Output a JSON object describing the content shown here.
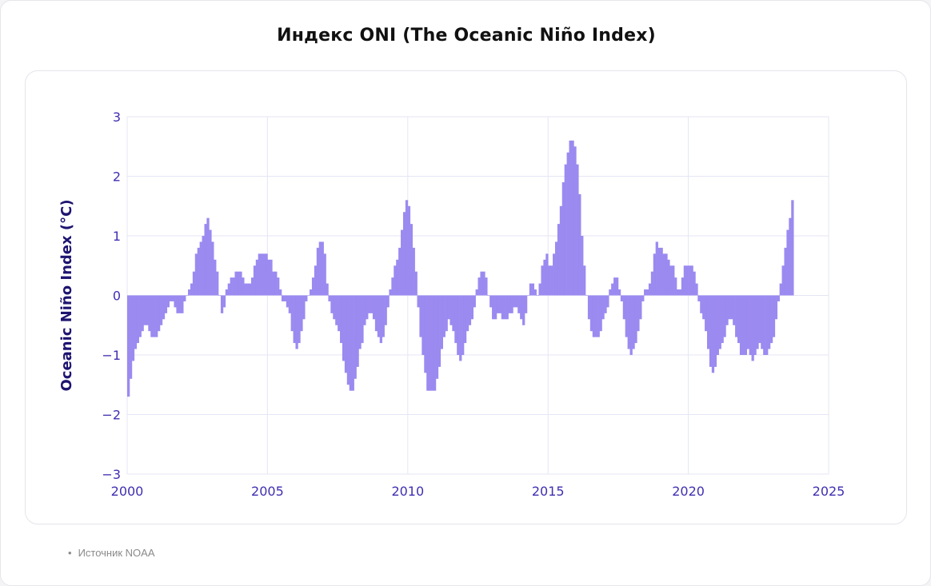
{
  "title": "Индекс ONI (The Oceanic Niño Index)",
  "source_bullet": "•",
  "source": "Источник NOAA",
  "colors": {
    "bar": "#9b8af0",
    "axis_text": "#3f2fb2",
    "ylabel": "#1e1470",
    "grid": "#e5e6f5"
  },
  "chart_data": {
    "type": "bar",
    "ylabel": "Oceanic Niño Index (°C)",
    "xlim": [
      2000,
      2025
    ],
    "ylim": [
      -3,
      3
    ],
    "xticks": [
      2000,
      2005,
      2010,
      2015,
      2020,
      2025
    ],
    "yticks": [
      -3,
      -2,
      -1,
      0,
      1,
      2,
      3
    ],
    "grid": true,
    "start": "2000-01",
    "interval": "monthly",
    "values": [
      -1.7,
      -1.4,
      -1.1,
      -0.9,
      -0.8,
      -0.7,
      -0.6,
      -0.5,
      -0.5,
      -0.6,
      -0.7,
      -0.7,
      -0.7,
      -0.6,
      -0.5,
      -0.4,
      -0.3,
      -0.2,
      -0.1,
      -0.1,
      -0.2,
      -0.3,
      -0.3,
      -0.3,
      -0.1,
      0.0,
      0.1,
      0.2,
      0.4,
      0.7,
      0.8,
      0.9,
      1.0,
      1.2,
      1.3,
      1.1,
      0.9,
      0.6,
      0.4,
      0.0,
      -0.3,
      -0.2,
      0.1,
      0.2,
      0.3,
      0.3,
      0.4,
      0.4,
      0.4,
      0.3,
      0.2,
      0.2,
      0.2,
      0.3,
      0.5,
      0.6,
      0.7,
      0.7,
      0.7,
      0.7,
      0.6,
      0.6,
      0.4,
      0.4,
      0.3,
      0.1,
      -0.1,
      -0.1,
      -0.2,
      -0.3,
      -0.6,
      -0.8,
      -0.9,
      -0.8,
      -0.6,
      -0.4,
      -0.1,
      0.0,
      0.1,
      0.3,
      0.5,
      0.8,
      0.9,
      0.9,
      0.7,
      0.2,
      -0.1,
      -0.3,
      -0.4,
      -0.5,
      -0.6,
      -0.8,
      -1.1,
      -1.3,
      -1.5,
      -1.6,
      -1.6,
      -1.4,
      -1.2,
      -0.9,
      -0.8,
      -0.5,
      -0.4,
      -0.3,
      -0.3,
      -0.4,
      -0.6,
      -0.7,
      -0.8,
      -0.7,
      -0.5,
      -0.2,
      0.1,
      0.3,
      0.5,
      0.6,
      0.8,
      1.1,
      1.4,
      1.6,
      1.5,
      1.2,
      0.8,
      0.4,
      -0.2,
      -0.7,
      -1.0,
      -1.3,
      -1.6,
      -1.6,
      -1.6,
      -1.6,
      -1.4,
      -1.2,
      -0.9,
      -0.7,
      -0.6,
      -0.4,
      -0.5,
      -0.6,
      -0.8,
      -1.0,
      -1.1,
      -1.0,
      -0.8,
      -0.6,
      -0.5,
      -0.4,
      -0.2,
      0.1,
      0.3,
      0.4,
      0.4,
      0.3,
      0.0,
      -0.2,
      -0.4,
      -0.4,
      -0.3,
      -0.3,
      -0.4,
      -0.4,
      -0.4,
      -0.3,
      -0.3,
      -0.2,
      -0.2,
      -0.3,
      -0.4,
      -0.5,
      -0.3,
      0.0,
      0.2,
      0.2,
      0.1,
      0.0,
      0.2,
      0.5,
      0.6,
      0.7,
      0.5,
      0.5,
      0.7,
      0.9,
      1.2,
      1.5,
      1.9,
      2.2,
      2.4,
      2.6,
      2.6,
      2.5,
      2.2,
      1.7,
      1.0,
      0.5,
      0.0,
      -0.4,
      -0.6,
      -0.7,
      -0.7,
      -0.7,
      -0.6,
      -0.4,
      -0.3,
      -0.2,
      0.1,
      0.2,
      0.3,
      0.3,
      0.1,
      -0.1,
      -0.4,
      -0.7,
      -0.9,
      -1.0,
      -0.9,
      -0.8,
      -0.6,
      -0.4,
      -0.1,
      0.1,
      0.1,
      0.2,
      0.4,
      0.7,
      0.9,
      0.8,
      0.8,
      0.7,
      0.7,
      0.6,
      0.5,
      0.5,
      0.3,
      0.1,
      0.1,
      0.3,
      0.5,
      0.5,
      0.5,
      0.5,
      0.4,
      0.2,
      -0.1,
      -0.3,
      -0.4,
      -0.6,
      -0.9,
      -1.2,
      -1.3,
      -1.2,
      -1.0,
      -0.9,
      -0.8,
      -0.7,
      -0.5,
      -0.4,
      -0.4,
      -0.5,
      -0.7,
      -0.8,
      -1.0,
      -1.0,
      -1.0,
      -0.9,
      -1.0,
      -1.1,
      -1.0,
      -0.9,
      -0.8,
      -0.9,
      -1.0,
      -1.0,
      -0.9,
      -0.8,
      -0.7,
      -0.4,
      -0.1,
      0.2,
      0.5,
      0.8,
      1.1,
      1.3,
      1.6
    ]
  }
}
